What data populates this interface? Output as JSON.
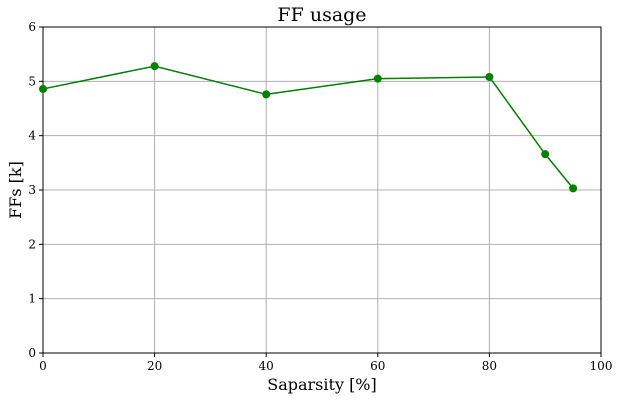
{
  "chart_data": {
    "type": "line",
    "title": "FF usage",
    "xlabel": "Saparsity [%]",
    "ylabel": "FFs [k]",
    "xlim": [
      0,
      100
    ],
    "ylim": [
      0,
      6
    ],
    "xticks": [
      0,
      20,
      40,
      60,
      80,
      100
    ],
    "yticks": [
      0,
      1,
      2,
      3,
      4,
      5,
      6
    ],
    "xtick_labels": [
      "0",
      "20",
      "40",
      "60",
      "80",
      "100"
    ],
    "ytick_labels": [
      "0",
      "1",
      "2",
      "3",
      "4",
      "5",
      "6"
    ],
    "grid": true,
    "series": [
      {
        "name": "FF usage",
        "color": "#008000",
        "marker": "circle",
        "x": [
          0,
          20,
          40,
          60,
          80,
          90,
          95
        ],
        "y": [
          4.86,
          5.28,
          4.76,
          5.05,
          5.08,
          3.66,
          3.03
        ]
      }
    ]
  }
}
